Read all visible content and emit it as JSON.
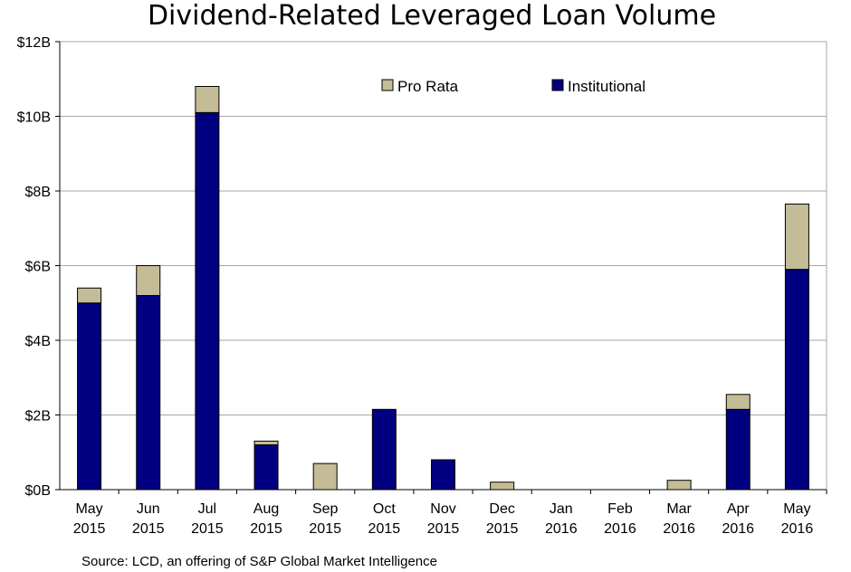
{
  "chart_data": {
    "type": "bar",
    "stacked": true,
    "title": "Dividend-Related Leveraged Loan Volume",
    "categories": [
      [
        "May",
        "2015"
      ],
      [
        "Jun",
        "2015"
      ],
      [
        "Jul",
        "2015"
      ],
      [
        "Aug",
        "2015"
      ],
      [
        "Sep",
        "2015"
      ],
      [
        "Oct",
        "2015"
      ],
      [
        "Nov",
        "2015"
      ],
      [
        "Dec",
        "2015"
      ],
      [
        "Jan",
        "2016"
      ],
      [
        "Feb",
        "2016"
      ],
      [
        "Mar",
        "2016"
      ],
      [
        "Apr",
        "2016"
      ],
      [
        "May",
        "2016"
      ]
    ],
    "series": [
      {
        "name": "Institutional",
        "color": "#000080",
        "values": [
          5.0,
          5.2,
          10.1,
          1.2,
          0,
          2.15,
          0.8,
          0,
          0,
          0,
          0,
          2.15,
          5.9
        ]
      },
      {
        "name": "Pro Rata",
        "color": "#c4bc96",
        "values": [
          0.4,
          0.8,
          0.7,
          0.1,
          0.7,
          0,
          0,
          0.2,
          0,
          0,
          0.25,
          0.4,
          1.75
        ]
      }
    ],
    "y_ticks": [
      "$0B",
      "$2B",
      "$4B",
      "$6B",
      "$8B",
      "$10B",
      "$12B"
    ],
    "ylim": [
      0,
      12
    ],
    "ylabel": "",
    "xlabel": "",
    "grid": true,
    "legend_position": "top-center",
    "legend_order": [
      "Pro Rata",
      "Institutional"
    ],
    "source": "Source:  LCD, an offering  of S&P Global Market Intelligence"
  }
}
